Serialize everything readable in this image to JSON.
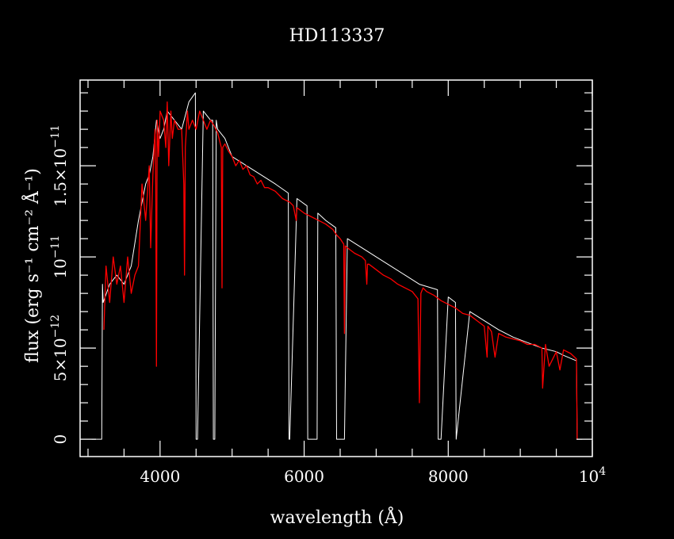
{
  "chart_data": {
    "type": "line",
    "title": "HD113337",
    "xlabel": "wavelength (Å)",
    "ylabel": "flux (erg s⁻¹ cm⁻² Å⁻¹)",
    "xlim": [
      2890,
      10000
    ],
    "ylim": [
      -9.5e-13,
      1.97e-11
    ],
    "x_ticks": [
      {
        "value": 4000,
        "label": "4000"
      },
      {
        "value": 6000,
        "label": "6000"
      },
      {
        "value": 8000,
        "label": "8000"
      },
      {
        "value": 10000,
        "label": "10",
        "exp": "4"
      }
    ],
    "y_ticks": [
      {
        "value": 0,
        "label": "0"
      },
      {
        "value": 5e-12,
        "label": "5×10",
        "exp": "−12"
      },
      {
        "value": 1e-11,
        "label": "10",
        "exp": "−11"
      },
      {
        "value": 1.5e-11,
        "label": "1.5×10",
        "exp": "−11"
      }
    ],
    "grid": false,
    "background": "#000000",
    "series": [
      {
        "color": "#ffffff",
        "x": [
          3050,
          3190,
          3200,
          3210,
          3300,
          3400,
          3500,
          3600,
          3700,
          3800,
          3850,
          3900,
          3950,
          4000,
          4050,
          4100,
          4200,
          4300,
          4400,
          4490,
          4500,
          4520,
          4600,
          4700,
          4730,
          4740,
          4760,
          4780,
          4800,
          4900,
          5000,
          5200,
          5400,
          5600,
          5780,
          5790,
          5800,
          5900,
          6040,
          6050,
          6180,
          6190,
          6300,
          6440,
          6450,
          6560,
          6600,
          6800,
          7000,
          7200,
          7400,
          7600,
          7850,
          7860,
          7900,
          8000,
          8100,
          8110,
          8300,
          8500,
          8700,
          8900,
          9100,
          9300,
          9500,
          9600,
          9780,
          9790,
          9860
        ],
        "y": [
          0,
          0,
          8.5e-12,
          7.5e-12,
          8.5e-12,
          9e-12,
          8.5e-12,
          9.5e-12,
          1.2e-11,
          1.4e-11,
          1.45e-11,
          1.55e-11,
          1.75e-11,
          1.65e-11,
          1.7e-11,
          1.8e-11,
          1.75e-11,
          1.7e-11,
          1.85e-11,
          1.9e-11,
          0,
          0,
          1.8e-11,
          1.75e-11,
          1.75e-11,
          0,
          0,
          1.75e-11,
          1.7e-11,
          1.65e-11,
          1.55e-11,
          1.5e-11,
          1.45e-11,
          1.4e-11,
          1.35e-11,
          0,
          0,
          1.32e-11,
          1.28e-11,
          0,
          0,
          1.24e-11,
          1.2e-11,
          1.16e-11,
          0,
          0,
          1.1e-11,
          1.05e-11,
          1e-11,
          9.5e-12,
          9e-12,
          8.5e-12,
          8.2e-12,
          0,
          0,
          7.8e-12,
          7.5e-12,
          0,
          7e-12,
          6.5e-12,
          6e-12,
          5.6e-12,
          5.3e-12,
          5e-12,
          4.8e-12,
          4.6e-12,
          4.3e-12,
          0,
          0
        ]
      },
      {
        "color": "#ff0000",
        "x": [
          3220,
          3250,
          3300,
          3350,
          3400,
          3450,
          3500,
          3550,
          3600,
          3650,
          3700,
          3750,
          3800,
          3850,
          3870,
          3900,
          3930,
          3940,
          3950,
          3960,
          3980,
          4000,
          4050,
          4080,
          4100,
          4120,
          4150,
          4170,
          4200,
          4250,
          4300,
          4330,
          4340,
          4350,
          4380,
          4400,
          4450,
          4500,
          4550,
          4600,
          4650,
          4700,
          4750,
          4800,
          4850,
          4860,
          4870,
          4900,
          4950,
          5000,
          5050,
          5100,
          5150,
          5200,
          5250,
          5300,
          5350,
          5400,
          5450,
          5500,
          5600,
          5700,
          5800,
          5850,
          5890,
          5900,
          6000,
          6100,
          6200,
          6300,
          6400,
          6450,
          6500,
          6550,
          6560,
          6570,
          6600,
          6700,
          6800,
          6850,
          6870,
          6880,
          6900,
          7000,
          7100,
          7200,
          7300,
          7400,
          7500,
          7580,
          7600,
          7620,
          7650,
          7700,
          7800,
          7900,
          8000,
          8100,
          8200,
          8300,
          8400,
          8500,
          8540,
          8550,
          8600,
          8650,
          8700,
          8800,
          8900,
          9000,
          9100,
          9200,
          9300,
          9310,
          9350,
          9400,
          9500,
          9550,
          9600,
          9700,
          9780,
          9790,
          9800
        ],
        "y": [
          6e-12,
          9.5e-12,
          7.5e-12,
          1e-11,
          8.5e-12,
          9.5e-12,
          7.5e-12,
          1e-11,
          8e-12,
          9e-12,
          9.5e-12,
          1.4e-11,
          1.2e-11,
          1.5e-11,
          1.05e-11,
          1.45e-11,
          1.7e-11,
          1.4e-11,
          4e-12,
          1.75e-11,
          1.55e-11,
          1.8e-11,
          1.75e-11,
          1.6e-11,
          1.85e-11,
          1.5e-11,
          1.8e-11,
          1.65e-11,
          1.75e-11,
          1.7e-11,
          1.7e-11,
          1.4e-11,
          9e-12,
          1.6e-11,
          1.8e-11,
          1.7e-11,
          1.75e-11,
          1.7e-11,
          1.8e-11,
          1.75e-11,
          1.7e-11,
          1.75e-11,
          1.72e-11,
          1.68e-11,
          1.6e-11,
          8.3e-12,
          1.6e-11,
          1.62e-11,
          1.58e-11,
          1.55e-11,
          1.5e-11,
          1.53e-11,
          1.48e-11,
          1.5e-11,
          1.45e-11,
          1.44e-11,
          1.4e-11,
          1.42e-11,
          1.38e-11,
          1.38e-11,
          1.36e-11,
          1.32e-11,
          1.3e-11,
          1.28e-11,
          1.2e-11,
          1.27e-11,
          1.24e-11,
          1.22e-11,
          1.2e-11,
          1.18e-11,
          1.15e-11,
          1.12e-11,
          1.1e-11,
          1.07e-11,
          5.8e-12,
          1.06e-11,
          1.05e-11,
          1.02e-11,
          1e-11,
          9.8e-12,
          8.5e-12,
          9.6e-12,
          9.6e-12,
          9.3e-12,
          9e-12,
          8.8e-12,
          8.5e-12,
          8.3e-12,
          8.1e-12,
          7.7e-12,
          2e-12,
          8e-12,
          8.3e-12,
          8.1e-12,
          7.9e-12,
          7.6e-12,
          7.4e-12,
          7.2e-12,
          6.9e-12,
          6.8e-12,
          6.5e-12,
          6.2e-12,
          4.5e-12,
          6.2e-12,
          5.9e-12,
          4.5e-12,
          5.8e-12,
          5.6e-12,
          5.5e-12,
          5.4e-12,
          5.2e-12,
          5.2e-12,
          5e-12,
          2.8e-12,
          5.2e-12,
          4e-12,
          4.8e-12,
          3.8e-12,
          4.9e-12,
          4.7e-12,
          4.4e-12,
          0,
          0
        ]
      }
    ]
  }
}
